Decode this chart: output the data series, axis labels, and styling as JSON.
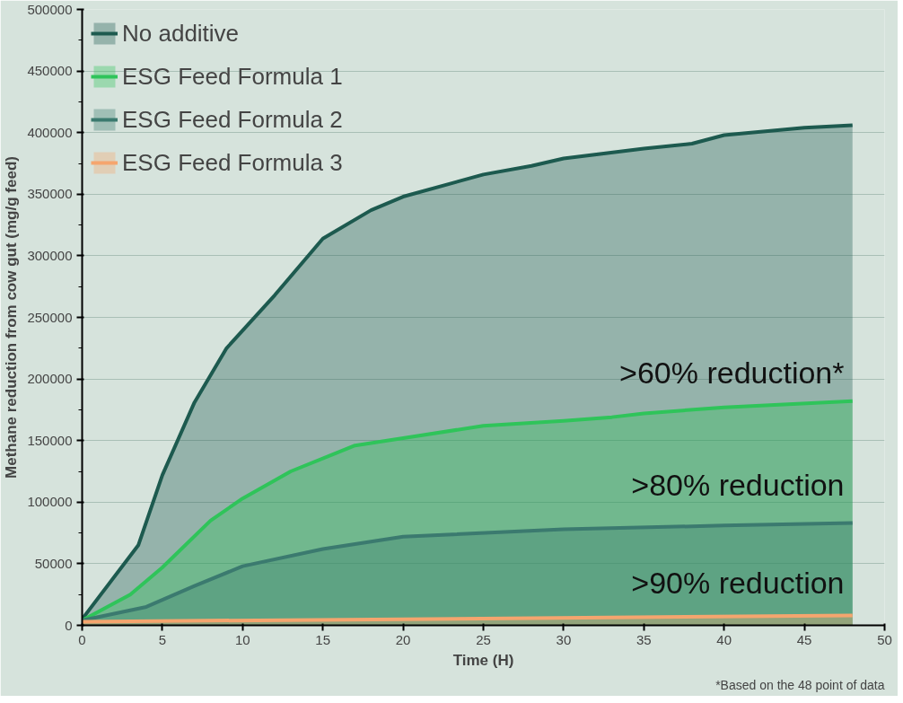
{
  "chart_data": {
    "type": "area",
    "xlabel": "Time (H)",
    "ylabel": "Methane reduction from cow gut (mg/g feed)",
    "xlim": [
      0,
      50
    ],
    "ylim": [
      0,
      500000
    ],
    "xticks": [
      0,
      5,
      10,
      15,
      20,
      25,
      30,
      35,
      40,
      45,
      50
    ],
    "yticks": [
      0,
      50000,
      100000,
      150000,
      200000,
      250000,
      300000,
      350000,
      400000,
      450000,
      500000
    ],
    "grid": "y",
    "legend": "top left",
    "series": [
      {
        "name": "No additive",
        "color": "#1d5a4f",
        "x": [
          0,
          3.5,
          5,
          7,
          9,
          12,
          15,
          18,
          20,
          25,
          28,
          30,
          35,
          38,
          40,
          45,
          48
        ],
        "values": [
          5000,
          65000,
          122000,
          181000,
          225000,
          268000,
          314000,
          337000,
          348000,
          366000,
          373000,
          379000,
          387000,
          391000,
          398000,
          404000,
          406000
        ]
      },
      {
        "name": "ESG Feed Formula 1",
        "color": "#2fc45a",
        "x": [
          0,
          3,
          5,
          8,
          10,
          13,
          17,
          20,
          25,
          30,
          33,
          35,
          40,
          48
        ],
        "values": [
          4000,
          25000,
          47000,
          85000,
          103000,
          125000,
          146000,
          152000,
          162000,
          166000,
          169000,
          172000,
          177000,
          182000
        ]
      },
      {
        "name": "ESG Feed Formula 2",
        "color": "#3b7a6f",
        "x": [
          0,
          4,
          7,
          10,
          15,
          20,
          30,
          40,
          48
        ],
        "values": [
          4000,
          15000,
          32000,
          48000,
          62000,
          72000,
          78000,
          81000,
          83000
        ]
      },
      {
        "name": "ESG Feed Formula 3",
        "color": "#f5a56e",
        "x": [
          0,
          20,
          48
        ],
        "values": [
          3000,
          5000,
          8000
        ]
      }
    ],
    "annotations": [
      ">60% reduction*",
      ">80% reduction",
      ">90% reduction",
      "*Based on the 48 point of data"
    ]
  }
}
